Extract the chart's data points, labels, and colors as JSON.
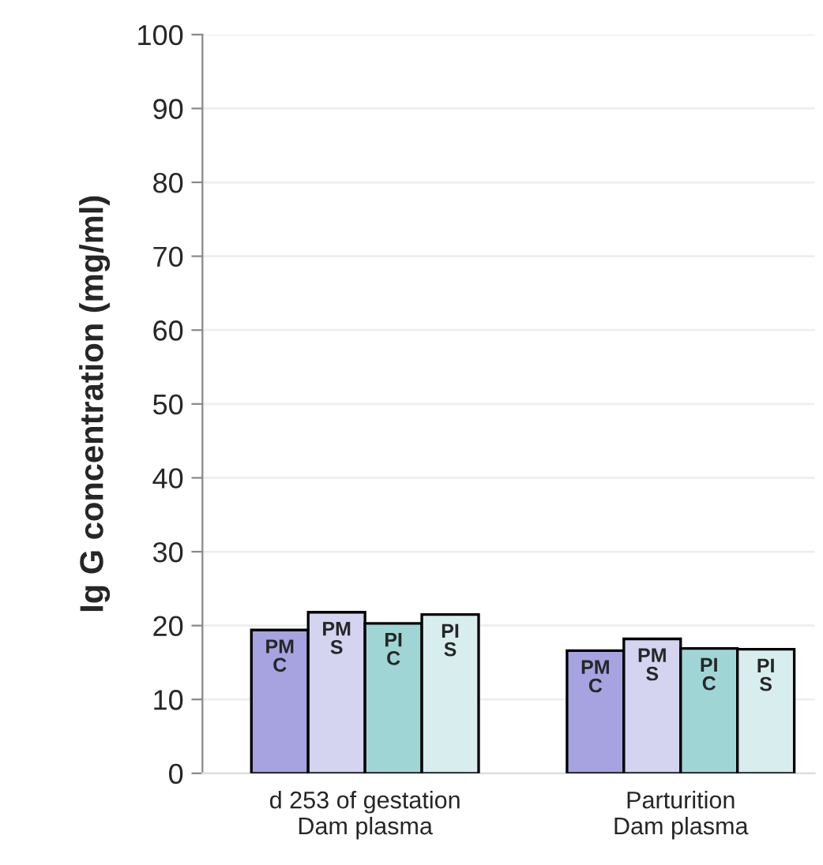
{
  "chart_data": {
    "type": "bar",
    "ylabel": "Ig G concentration (mg/ml)",
    "categories": [
      "d 253 of gestation\nDam plasma",
      "Parturition\nDam plasma"
    ],
    "series": [
      {
        "name": "PM\nC",
        "color": "#a6a3e0",
        "values": [
          19.4,
          16.6
        ]
      },
      {
        "name": "PM\nS",
        "color": "#d4d3f0",
        "values": [
          21.8,
          18.2
        ]
      },
      {
        "name": "PI\nC",
        "color": "#a0d5d5",
        "values": [
          20.3,
          16.9
        ]
      },
      {
        "name": "PI\nS",
        "color": "#d8eeee",
        "values": [
          21.5,
          16.8
        ]
      }
    ],
    "ylim": [
      0,
      100
    ],
    "yticks": [
      0,
      10,
      20,
      30,
      40,
      50,
      60,
      70,
      80,
      90,
      100
    ],
    "grid": "y",
    "legend": false
  }
}
